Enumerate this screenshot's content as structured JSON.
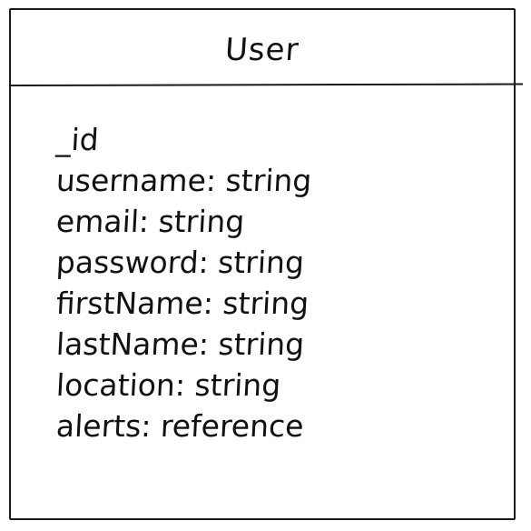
{
  "entity": {
    "title": "User",
    "fields": [
      "_id",
      "username: string",
      "email: string",
      "password: string",
      "firstName: string",
      "lastName: string",
      "location: string",
      "alerts: reference"
    ]
  }
}
